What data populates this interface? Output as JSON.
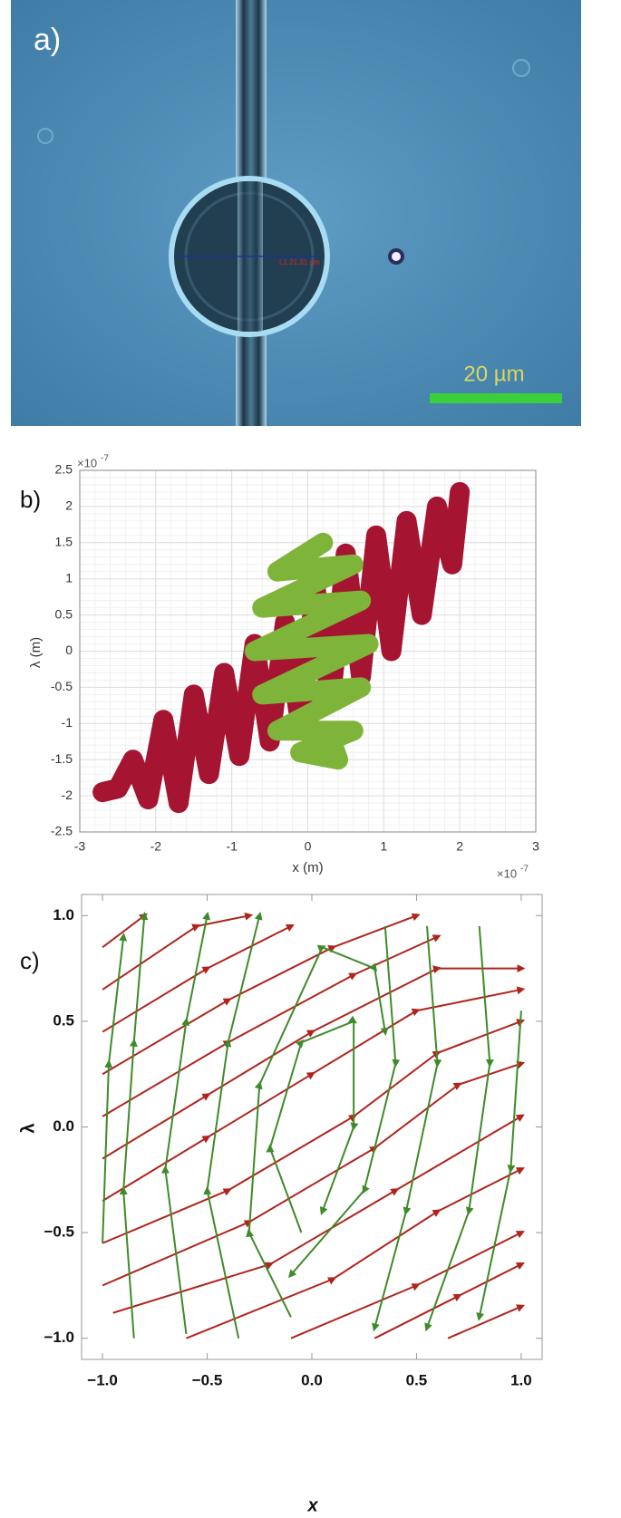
{
  "image_panel": {
    "panel_label": "a)",
    "measurement_label": "L1 21.31 µm",
    "scale_bar_label": "20 µm"
  },
  "chart_data": [
    {
      "type": "line",
      "panel_label": "b)",
      "xlabel": "x (m)",
      "ylabel": "λ (m)",
      "x_multiplier": {
        "base": "×10",
        "exponent": "-7"
      },
      "y_multiplier": {
        "base": "×10",
        "exponent": "-7"
      },
      "xlim": [
        -3,
        3
      ],
      "ylim": [
        -2.5,
        2.5
      ],
      "xticks": [
        -3,
        -2,
        -1,
        0,
        1,
        2,
        3
      ],
      "yticks": [
        -2.5,
        -2,
        -1.5,
        -1,
        -0.5,
        0,
        0.5,
        1,
        1.5,
        2,
        2.5
      ],
      "grid": true,
      "minor_grid": true,
      "series": [
        {
          "color": "#a51431",
          "x": [
            -2.7,
            -2.5,
            -2.3,
            -2.1,
            -1.9,
            -1.7,
            -1.5,
            -1.3,
            -1.1,
            -0.9,
            -0.7,
            -0.5,
            -0.3,
            -0.1,
            0.1,
            0.3,
            0.5,
            0.7,
            0.9,
            1.1,
            1.3,
            1.5,
            1.7,
            1.9,
            2.0
          ],
          "values": [
            -1.95,
            -1.9,
            -1.5,
            -2.05,
            -0.95,
            -2.1,
            -0.6,
            -1.7,
            -0.3,
            -1.45,
            0.1,
            -1.25,
            0.4,
            -1.0,
            0.9,
            -0.7,
            1.35,
            -0.35,
            1.6,
            0.0,
            1.8,
            0.5,
            2.0,
            1.2,
            2.2
          ]
        },
        {
          "color": "#7fb43a",
          "x": [
            0.2,
            -0.4,
            0.6,
            -0.6,
            0.7,
            -0.7,
            0.8,
            -0.6,
            0.7,
            -0.4,
            0.6,
            -0.1,
            0.4,
            0.3
          ],
          "values": [
            1.5,
            1.1,
            1.2,
            0.6,
            0.7,
            0.0,
            0.1,
            -0.6,
            -0.5,
            -1.1,
            -1.1,
            -1.4,
            -1.5,
            -1.2
          ]
        }
      ]
    },
    {
      "type": "stream",
      "panel_label": "c)",
      "xlabel": "x",
      "ylabel": "λ",
      "xlim": [
        -1.1,
        1.1
      ],
      "ylim": [
        -1.1,
        1.1
      ],
      "xticks": [
        {
          "value": -1,
          "label": "−1.0"
        },
        {
          "value": -0.5,
          "label": "−0.5"
        },
        {
          "value": 0,
          "label": "0.0"
        },
        {
          "value": 0.5,
          "label": "0.5"
        },
        {
          "value": 1,
          "label": "1.0"
        }
      ],
      "yticks": [
        {
          "value": -1,
          "label": "−1.0"
        },
        {
          "value": -0.5,
          "label": "−0.5"
        },
        {
          "value": 0,
          "label": "0.0"
        },
        {
          "value": 0.5,
          "label": "0.5"
        },
        {
          "value": 1,
          "label": "1.0"
        }
      ],
      "series": [
        {
          "color": "#b0241c",
          "x": [
            -1,
            -0.8
          ],
          "y": [
            0.85,
            1.0
          ]
        },
        {
          "color": "#b0241c",
          "x": [
            -1,
            -0.55,
            -0.3
          ],
          "y": [
            0.65,
            0.95,
            1.0
          ]
        },
        {
          "color": "#b0241c",
          "x": [
            -1,
            -0.5,
            -0.1
          ],
          "y": [
            0.45,
            0.75,
            0.95
          ]
        },
        {
          "color": "#b0241c",
          "x": [
            -1,
            -0.4,
            0.1,
            0.5
          ],
          "y": [
            0.25,
            0.6,
            0.85,
            1.0
          ]
        },
        {
          "color": "#b0241c",
          "x": [
            -1,
            -0.4,
            0.2,
            0.6
          ],
          "y": [
            0.05,
            0.4,
            0.72,
            0.9
          ]
        },
        {
          "color": "#b0241c",
          "x": [
            -1,
            -0.5,
            0.0,
            0.6,
            1.0
          ],
          "y": [
            -0.15,
            0.15,
            0.45,
            0.75,
            0.75
          ]
        },
        {
          "color": "#b0241c",
          "x": [
            -1,
            -0.5,
            0,
            0.5,
            1
          ],
          "y": [
            -0.35,
            -0.05,
            0.25,
            0.55,
            0.65
          ]
        },
        {
          "color": "#b0241c",
          "x": [
            -1,
            -0.4,
            0.2,
            0.6,
            1
          ],
          "y": [
            -0.55,
            -0.3,
            0.05,
            0.35,
            0.5
          ]
        },
        {
          "color": "#b0241c",
          "x": [
            -1,
            -0.3,
            0.3,
            0.7,
            1
          ],
          "y": [
            -0.75,
            -0.45,
            -0.1,
            0.2,
            0.3
          ]
        },
        {
          "color": "#b0241c",
          "x": [
            -0.95,
            -0.2,
            0.4,
            1
          ],
          "y": [
            -0.88,
            -0.65,
            -0.3,
            0.05
          ]
        },
        {
          "color": "#b0241c",
          "x": [
            -0.6,
            0.1,
            0.6,
            1
          ],
          "y": [
            -1.0,
            -0.72,
            -0.4,
            -0.2
          ]
        },
        {
          "color": "#b0241c",
          "x": [
            -0.1,
            0.5,
            1
          ],
          "y": [
            -1.0,
            -0.75,
            -0.5
          ]
        },
        {
          "color": "#b0241c",
          "x": [
            0.3,
            0.7,
            1
          ],
          "y": [
            -1.0,
            -0.8,
            -0.65
          ]
        },
        {
          "color": "#b0241c",
          "x": [
            0.65,
            1
          ],
          "y": [
            -1.0,
            -0.85
          ]
        },
        {
          "color": "#3f8a2a",
          "x": [
            -0.85,
            -0.9,
            -0.85,
            -0.8
          ],
          "y": [
            -1.0,
            -0.3,
            0.4,
            1.0
          ]
        },
        {
          "color": "#3f8a2a",
          "x": [
            -1,
            -0.97,
            -0.9
          ],
          "y": [
            -0.55,
            0.3,
            0.9
          ]
        },
        {
          "color": "#3f8a2a",
          "x": [
            -0.6,
            -0.7,
            -0.6,
            -0.5
          ],
          "y": [
            -0.98,
            -0.2,
            0.5,
            1.0
          ]
        },
        {
          "color": "#3f8a2a",
          "x": [
            -0.35,
            -0.5,
            -0.4,
            -0.25
          ],
          "y": [
            -1.0,
            -0.3,
            0.4,
            1.0
          ]
        },
        {
          "color": "#3f8a2a",
          "x": [
            -0.1,
            -0.3,
            -0.25,
            0.05,
            0.3,
            0.35
          ],
          "y": [
            -0.9,
            -0.5,
            0.2,
            0.85,
            0.75,
            0.45
          ]
        },
        {
          "color": "#3f8a2a",
          "x": [
            -0.05,
            -0.2,
            -0.05,
            0.2,
            0.2,
            0.05
          ],
          "y": [
            -0.5,
            -0.1,
            0.4,
            0.5,
            0.0,
            -0.4
          ]
        },
        {
          "color": "#3f8a2a",
          "x": [
            0.55,
            0.6,
            0.45,
            0.3
          ],
          "y": [
            0.95,
            0.3,
            -0.4,
            -0.95
          ]
        },
        {
          "color": "#3f8a2a",
          "x": [
            0.8,
            0.85,
            0.75,
            0.55
          ],
          "y": [
            0.95,
            0.3,
            -0.4,
            -0.95
          ]
        },
        {
          "color": "#3f8a2a",
          "x": [
            1.0,
            0.95,
            0.8
          ],
          "y": [
            0.55,
            -0.2,
            -0.9
          ]
        },
        {
          "color": "#3f8a2a",
          "x": [
            0.35,
            0.4,
            0.25,
            -0.1
          ],
          "y": [
            0.95,
            0.3,
            -0.3,
            -0.7
          ]
        }
      ]
    }
  ]
}
